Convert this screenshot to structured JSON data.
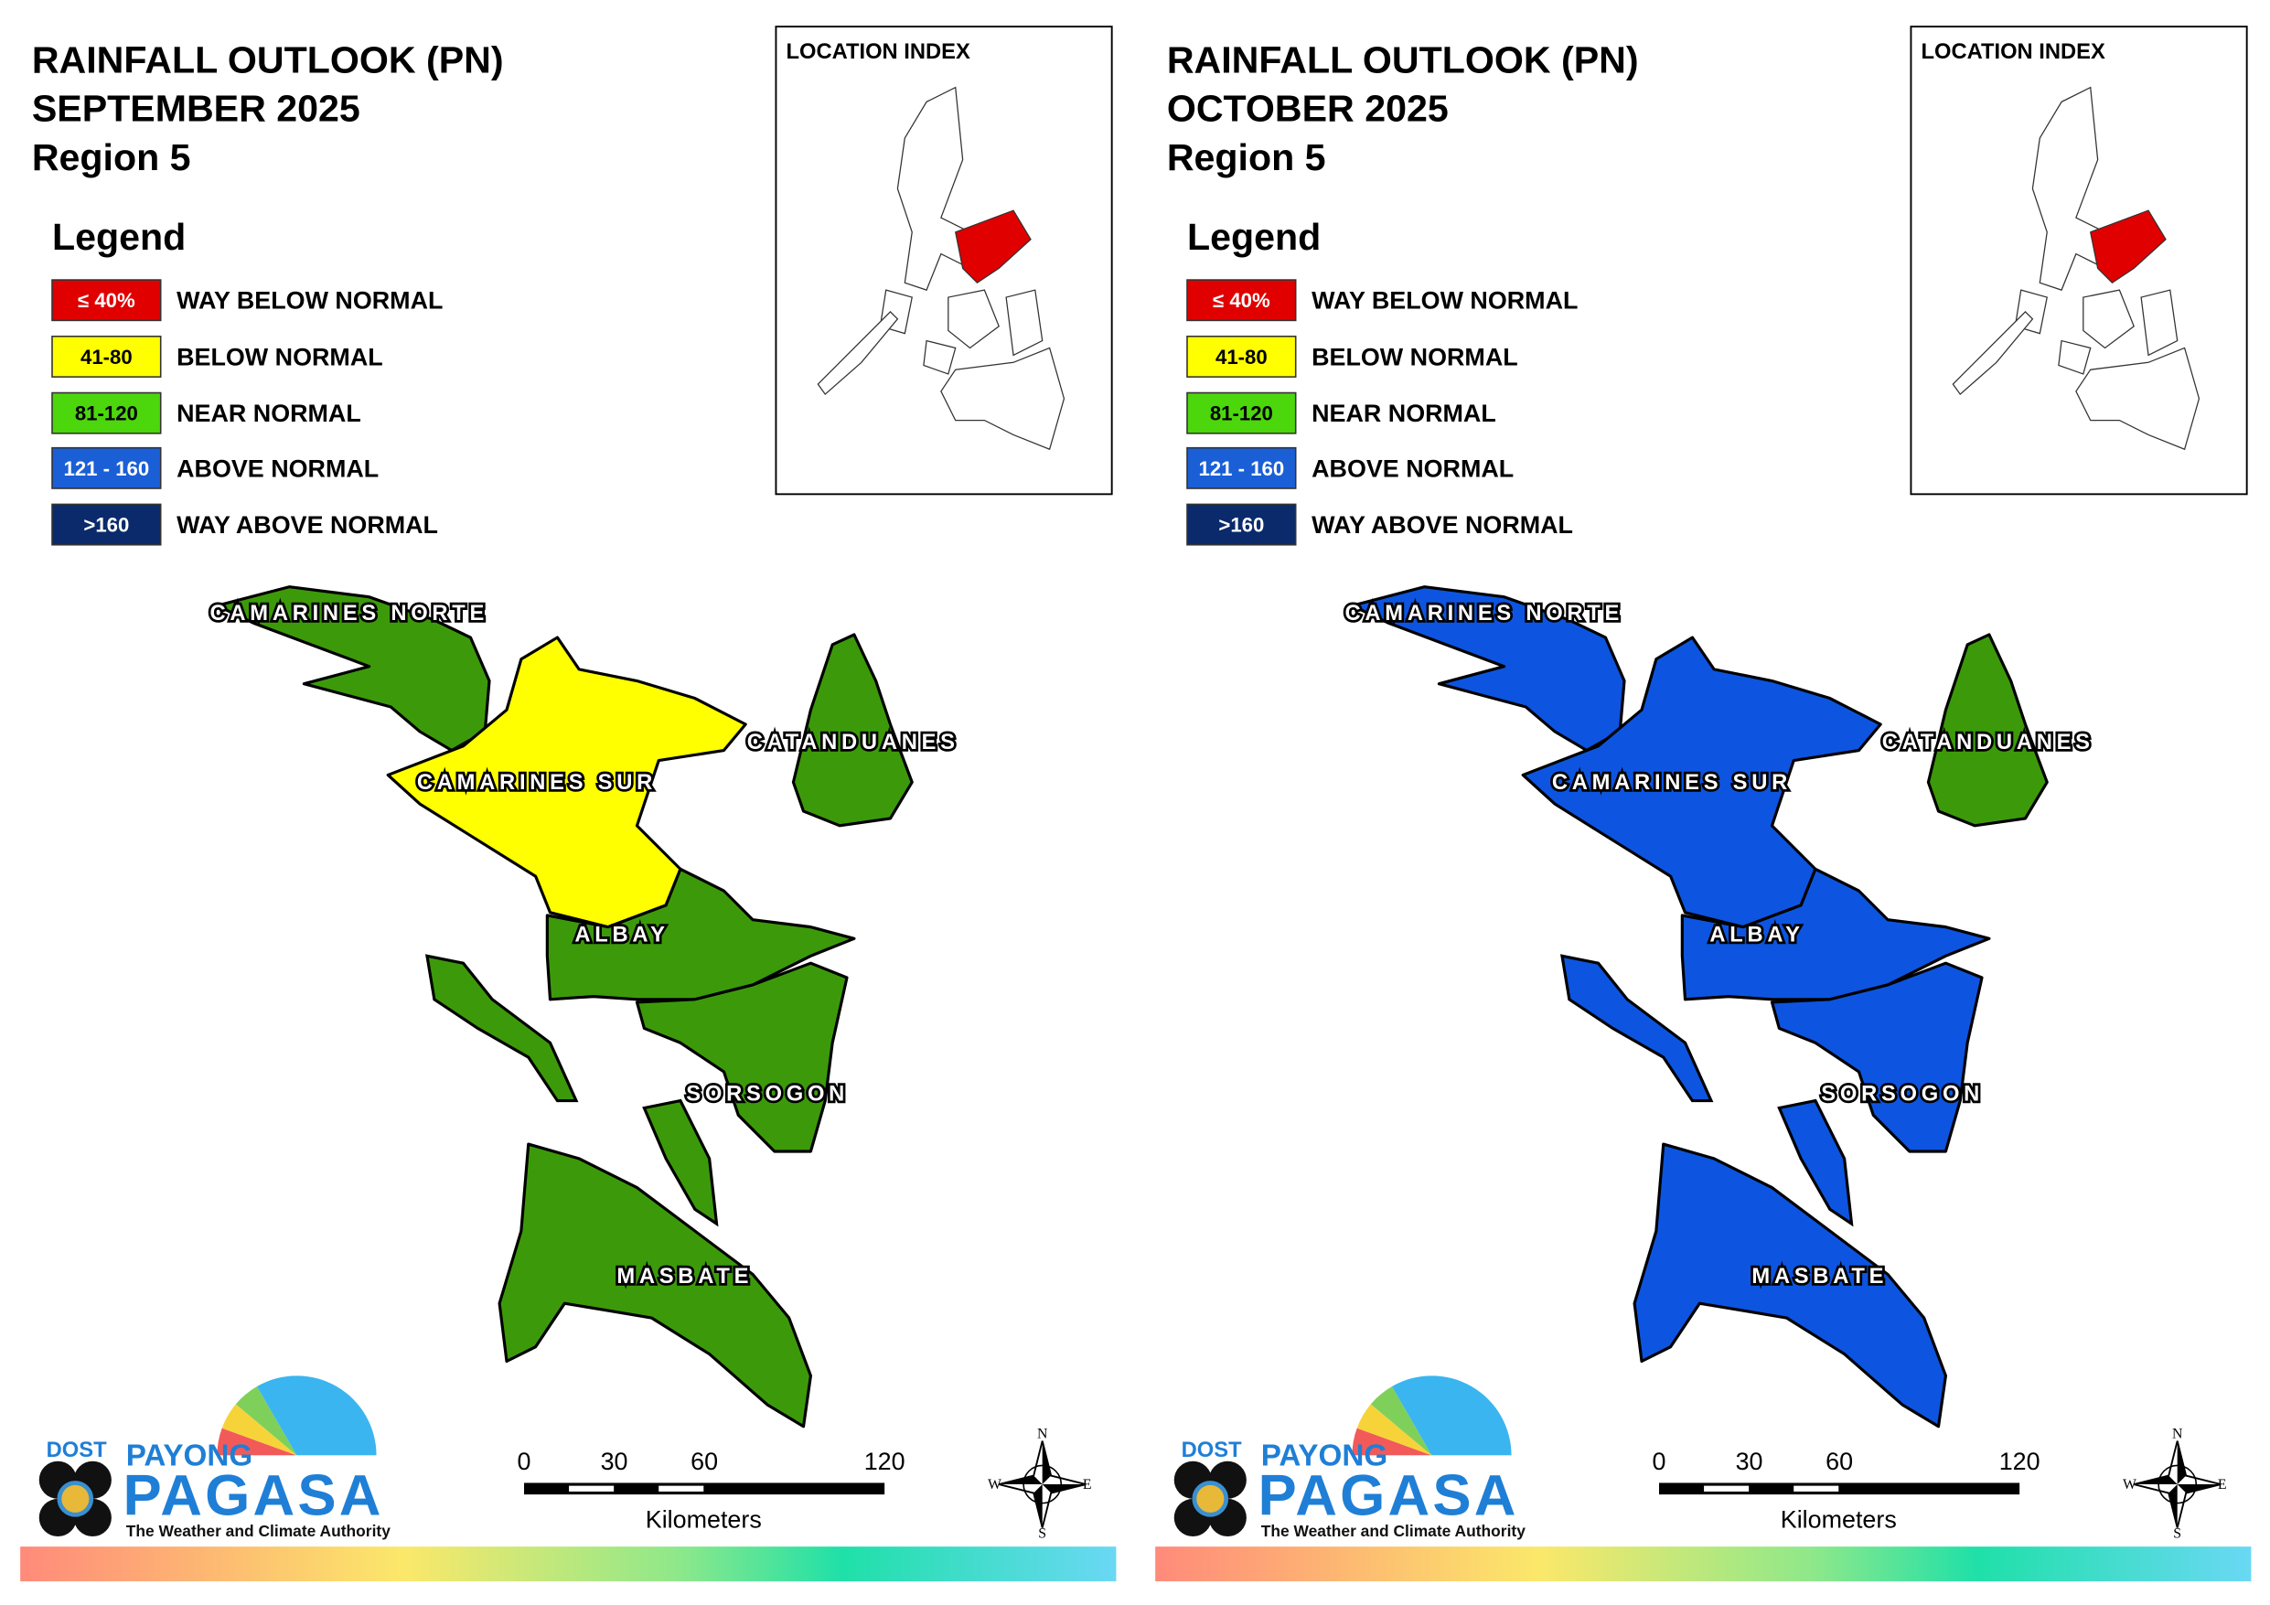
{
  "panels": [
    {
      "title": [
        "RAINFALL OUTLOOK (PN)",
        "SEPTEMBER 2025",
        "Region 5"
      ],
      "legend_title": "Legend",
      "legend": [
        {
          "range": "≤ 40%",
          "label": "WAY BELOW NORMAL",
          "color": "#e00000"
        },
        {
          "range": "41-80",
          "label": "BELOW NORMAL",
          "color": "#ffff00"
        },
        {
          "range": "81-120",
          "label": "NEAR NORMAL",
          "color": "#4cd60c"
        },
        {
          "range": "121 - 160",
          "label": "ABOVE NORMAL",
          "color": "#1a5fd6"
        },
        {
          "range": ">160",
          "label": "WAY ABOVE NORMAL",
          "color": "#0a2a6b"
        }
      ],
      "location_index": "LOCATION INDEX",
      "provinces": [
        {
          "name": "CAMARINES NORTE",
          "color": "#3c9a0a"
        },
        {
          "name": "CAMARINES SUR",
          "color": "#ffff00"
        },
        {
          "name": "CATANDUANES",
          "color": "#3c9a0a"
        },
        {
          "name": "ALBAY",
          "color": "#3c9a0a"
        },
        {
          "name": "SORSOGON",
          "color": "#3c9a0a"
        },
        {
          "name": "MASBATE",
          "color": "#3c9a0a"
        }
      ],
      "scale": {
        "ticks": [
          0,
          30,
          60,
          120
        ],
        "unit": "Kilometers"
      },
      "compass": {
        "n": "N",
        "e": "E",
        "s": "S",
        "w": "W"
      },
      "logo": {
        "agency": "DOST",
        "top": "PAYONG",
        "name": "PAGASA",
        "tagline": "The Weather and Climate Authority"
      }
    },
    {
      "title": [
        "RAINFALL OUTLOOK (PN)",
        "OCTOBER 2025",
        "Region 5"
      ],
      "legend_title": "Legend",
      "legend": [
        {
          "range": "≤ 40%",
          "label": "WAY BELOW NORMAL",
          "color": "#e00000"
        },
        {
          "range": "41-80",
          "label": "BELOW NORMAL",
          "color": "#ffff00"
        },
        {
          "range": "81-120",
          "label": "NEAR NORMAL",
          "color": "#4cd60c"
        },
        {
          "range": "121 - 160",
          "label": "ABOVE NORMAL",
          "color": "#1a5fd6"
        },
        {
          "range": ">160",
          "label": "WAY ABOVE NORMAL",
          "color": "#0a2a6b"
        }
      ],
      "location_index": "LOCATION INDEX",
      "provinces": [
        {
          "name": "CAMARINES NORTE",
          "color": "#0d55e0"
        },
        {
          "name": "CAMARINES SUR",
          "color": "#0d55e0"
        },
        {
          "name": "CATANDUANES",
          "color": "#3c9a0a"
        },
        {
          "name": "ALBAY",
          "color": "#0d55e0"
        },
        {
          "name": "SORSOGON",
          "color": "#0d55e0"
        },
        {
          "name": "MASBATE",
          "color": "#0d55e0"
        }
      ],
      "scale": {
        "ticks": [
          0,
          30,
          60,
          120
        ],
        "unit": "Kilometers"
      },
      "compass": {
        "n": "N",
        "e": "E",
        "s": "S",
        "w": "W"
      },
      "logo": {
        "agency": "DOST",
        "top": "PAYONG",
        "name": "PAGASA",
        "tagline": "The Weather and Climate Authority"
      }
    }
  ]
}
